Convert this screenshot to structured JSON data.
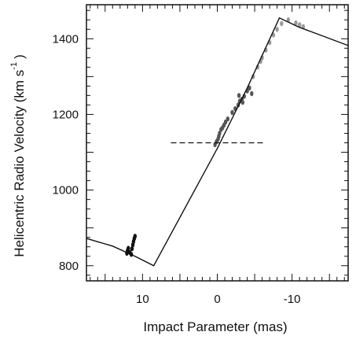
{
  "chart_data": {
    "type": "scatter",
    "title": "",
    "xlabel": "Impact Parameter (mas)",
    "ylabel": "Helicentric Radio Velocity (km s",
    "ylabel_exponent": "-1",
    "ylabel_close": ")",
    "x_reversed": true,
    "xlim": [
      17.5,
      -17.5
    ],
    "ylim": [
      760,
      1490
    ],
    "xticks": [
      10,
      0,
      -10
    ],
    "xtick_labels": [
      "10",
      "0",
      "-10"
    ],
    "yticks": [
      800,
      1000,
      1200,
      1400
    ],
    "ytick_labels": [
      "800",
      "1000",
      "1200",
      "1400"
    ],
    "grid": false,
    "model_curve": {
      "x": [
        17.5,
        14,
        11,
        8.5,
        0,
        -4,
        -8.3,
        -11,
        -14,
        -17.5
      ],
      "y": [
        872,
        852,
        825,
        800,
        1110,
        1270,
        1455,
        1430,
        1408,
        1382
      ]
    },
    "systemic_velocity_line": {
      "y": 1125,
      "x": [
        6.2,
        -6.2
      ]
    },
    "series": [
      {
        "color": "#111111",
        "x": [
          12.1,
          12.0,
          11.9,
          11.7,
          11.5,
          11.4,
          11.3,
          11.2,
          11.1,
          11.0
        ],
        "y": [
          833,
          840,
          846,
          835,
          830,
          845,
          855,
          864,
          872,
          878
        ]
      },
      {
        "color": "#555555",
        "x": [
          0.3,
          0.1,
          -0.1,
          -0.2,
          -0.3,
          -0.5,
          -0.7,
          -0.9,
          -1.1,
          -1.4,
          -2.0,
          -2.4,
          -2.8,
          -3.0,
          -3.3,
          -3.6,
          -4.0,
          -4.3,
          -4.6,
          -3.4,
          -2.9
        ],
        "y": [
          1120,
          1128,
          1135,
          1142,
          1150,
          1160,
          1165,
          1172,
          1180,
          1188,
          1205,
          1215,
          1225,
          1235,
          1240,
          1248,
          1262,
          1270,
          1255,
          1232,
          1250
        ]
      },
      {
        "color": "#9a9a9a",
        "x": [
          -4.8,
          -5.4,
          -6.0,
          -6.5,
          -7.0,
          -7.5,
          -8.0,
          -8.6,
          -9.5,
          -10.5,
          -11.0,
          -11.5,
          -5.8
        ],
        "y": [
          1300,
          1325,
          1350,
          1370,
          1390,
          1410,
          1425,
          1440,
          1450,
          1442,
          1437,
          1432,
          1340
        ]
      }
    ]
  }
}
